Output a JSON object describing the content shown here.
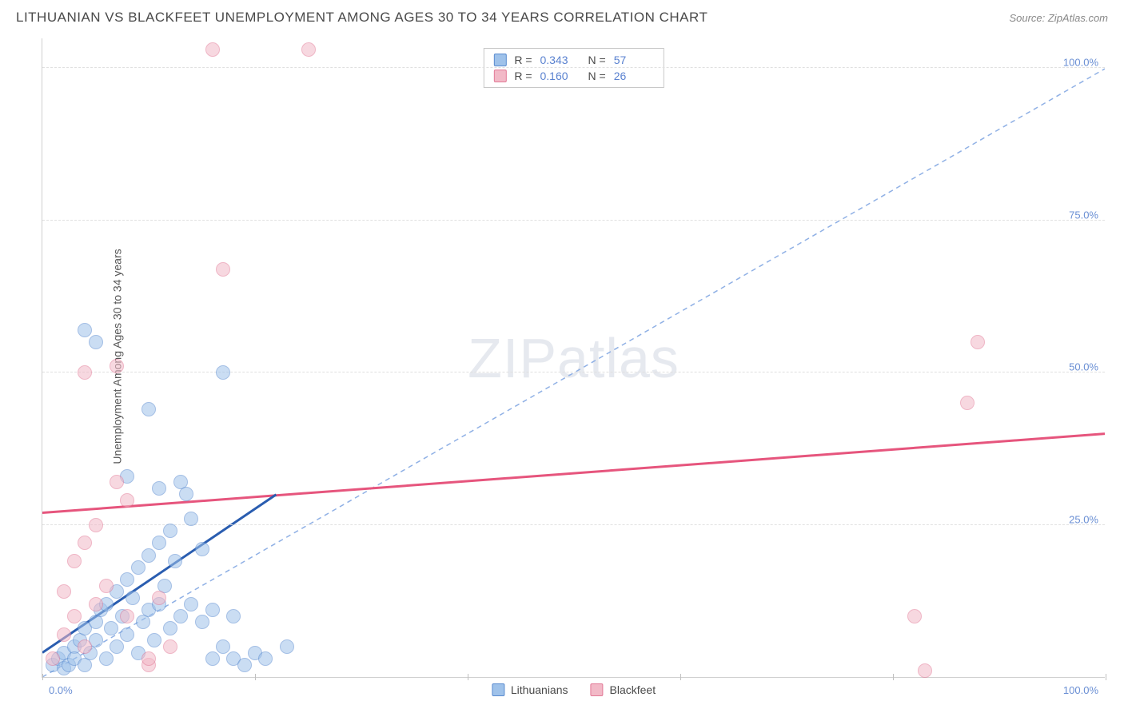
{
  "header": {
    "title": "LITHUANIAN VS BLACKFEET UNEMPLOYMENT AMONG AGES 30 TO 34 YEARS CORRELATION CHART",
    "source": "Source: ZipAtlas.com"
  },
  "watermark": {
    "zip": "ZIP",
    "atlas": "atlas"
  },
  "chart": {
    "type": "scatter",
    "ylabel": "Unemployment Among Ages 30 to 34 years",
    "xlim": [
      0,
      100
    ],
    "ylim": [
      0,
      105
    ],
    "xtick_positions": [
      0,
      20,
      40,
      60,
      80,
      100
    ],
    "xtick_labels_shown": {
      "left": "0.0%",
      "right": "100.0%"
    },
    "ytick_positions": [
      25,
      50,
      75,
      100
    ],
    "ytick_labels": [
      "25.0%",
      "50.0%",
      "75.0%",
      "100.0%"
    ],
    "gridline_color": "#e0e0e0",
    "axis_color": "#d0d0d0",
    "background_color": "#ffffff",
    "tick_label_color": "#6a8fd4",
    "marker_radius": 9,
    "marker_opacity": 0.55,
    "series": [
      {
        "name": "Lithuanians",
        "fill_color": "#9fc2ea",
        "stroke_color": "#5a8bd0",
        "points": [
          [
            1,
            2
          ],
          [
            1.5,
            3
          ],
          [
            2,
            1.5
          ],
          [
            2,
            4
          ],
          [
            2.5,
            2
          ],
          [
            3,
            5
          ],
          [
            3,
            3
          ],
          [
            3.5,
            6
          ],
          [
            4,
            2
          ],
          [
            4,
            8
          ],
          [
            4.5,
            4
          ],
          [
            5,
            9
          ],
          [
            5,
            6
          ],
          [
            5.5,
            11
          ],
          [
            6,
            3
          ],
          [
            6,
            12
          ],
          [
            6.5,
            8
          ],
          [
            7,
            14
          ],
          [
            7,
            5
          ],
          [
            7.5,
            10
          ],
          [
            8,
            16
          ],
          [
            8,
            7
          ],
          [
            8.5,
            13
          ],
          [
            9,
            4
          ],
          [
            9,
            18
          ],
          [
            9.5,
            9
          ],
          [
            10,
            20
          ],
          [
            10,
            11
          ],
          [
            10.5,
            6
          ],
          [
            11,
            22
          ],
          [
            11,
            31
          ],
          [
            11.5,
            15
          ],
          [
            12,
            8
          ],
          [
            12,
            24
          ],
          [
            12.5,
            19
          ],
          [
            13,
            10
          ],
          [
            13,
            32
          ],
          [
            13.5,
            30
          ],
          [
            14,
            12
          ],
          [
            14,
            26
          ],
          [
            15,
            9
          ],
          [
            15,
            21
          ],
          [
            16,
            11
          ],
          [
            16,
            3
          ],
          [
            17,
            5
          ],
          [
            17,
            50
          ],
          [
            18,
            10
          ],
          [
            18,
            3
          ],
          [
            19,
            2
          ],
          [
            20,
            4
          ],
          [
            4,
            57
          ],
          [
            5,
            55
          ],
          [
            10,
            44
          ],
          [
            21,
            3
          ],
          [
            23,
            5
          ],
          [
            11,
            12
          ],
          [
            8,
            33
          ]
        ],
        "trend": {
          "style": "solid",
          "color": "#2a5db0",
          "width": 3,
          "x1": 0,
          "y1": 4,
          "x2": 22,
          "y2": 30
        },
        "reference": {
          "style": "dashed",
          "color": "#8fb0e5",
          "width": 1.5,
          "x1": 0,
          "y1": 0,
          "x2": 100,
          "y2": 100
        }
      },
      {
        "name": "Blackfeet",
        "fill_color": "#f2b9c7",
        "stroke_color": "#e27a97",
        "points": [
          [
            1,
            3
          ],
          [
            2,
            7
          ],
          [
            2,
            14
          ],
          [
            3,
            10
          ],
          [
            3,
            19
          ],
          [
            4,
            5
          ],
          [
            4,
            22
          ],
          [
            5,
            12
          ],
          [
            5,
            25
          ],
          [
            6,
            15
          ],
          [
            7,
            32
          ],
          [
            8,
            10
          ],
          [
            8,
            29
          ],
          [
            10,
            2
          ],
          [
            11,
            13
          ],
          [
            12,
            5
          ],
          [
            4,
            50
          ],
          [
            7,
            51
          ],
          [
            17,
            67
          ],
          [
            16,
            103
          ],
          [
            25,
            103
          ],
          [
            88,
            55
          ],
          [
            87,
            45
          ],
          [
            82,
            10
          ],
          [
            83,
            1
          ],
          [
            10,
            3
          ]
        ],
        "trend": {
          "style": "solid",
          "color": "#e6557d",
          "width": 3,
          "x1": 0,
          "y1": 27,
          "x2": 100,
          "y2": 40
        }
      }
    ],
    "legend_top": {
      "rows": [
        {
          "swatch": 0,
          "r_label": "R =",
          "r_val": "0.343",
          "n_label": "N =",
          "n_val": "57"
        },
        {
          "swatch": 1,
          "r_label": "R =",
          "r_val": "0.160",
          "n_label": "N =",
          "n_val": "26"
        }
      ]
    },
    "legend_bottom": {
      "items": [
        {
          "swatch": 0,
          "label": "Lithuanians"
        },
        {
          "swatch": 1,
          "label": "Blackfeet"
        }
      ]
    }
  }
}
